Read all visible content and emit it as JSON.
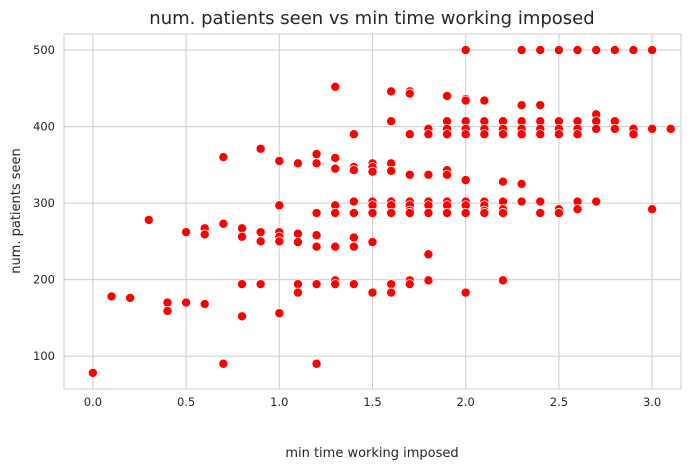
{
  "chart_data": {
    "type": "scatter",
    "title": "num. patients seen vs min time working imposed",
    "xlabel": "min time working imposed",
    "ylabel": "num. patients seen",
    "xlim": [
      -0.155,
      3.155
    ],
    "ylim": [
      57,
      521
    ],
    "xticks": [
      0.0,
      0.5,
      1.0,
      1.5,
      2.0,
      2.5,
      3.0
    ],
    "xtick_labels": [
      "0.0",
      "0.5",
      "1.0",
      "1.5",
      "2.0",
      "2.5",
      "3.0"
    ],
    "yticks": [
      100,
      200,
      300,
      400,
      500
    ],
    "ytick_labels": [
      "100",
      "200",
      "300",
      "400",
      "500"
    ],
    "grid": true,
    "colors": {
      "marker": "#ff0000",
      "grid": "#cccccc",
      "text": "#262626"
    },
    "points": [
      [
        0.0,
        78
      ],
      [
        0.1,
        178
      ],
      [
        0.2,
        176
      ],
      [
        0.3,
        278
      ],
      [
        0.4,
        170
      ],
      [
        0.4,
        159
      ],
      [
        0.5,
        262
      ],
      [
        0.5,
        170
      ],
      [
        0.6,
        267
      ],
      [
        0.6,
        259
      ],
      [
        0.6,
        168
      ],
      [
        0.7,
        360
      ],
      [
        0.7,
        273
      ],
      [
        0.7,
        90
      ],
      [
        0.8,
        267
      ],
      [
        0.8,
        256
      ],
      [
        0.8,
        194
      ],
      [
        0.8,
        152
      ],
      [
        0.9,
        371
      ],
      [
        0.9,
        262
      ],
      [
        0.9,
        250
      ],
      [
        0.9,
        194
      ],
      [
        1.0,
        355
      ],
      [
        1.0,
        297
      ],
      [
        1.0,
        262
      ],
      [
        1.0,
        256
      ],
      [
        1.0,
        250
      ],
      [
        1.0,
        156
      ],
      [
        1.1,
        352
      ],
      [
        1.1,
        260
      ],
      [
        1.1,
        249
      ],
      [
        1.1,
        194
      ],
      [
        1.1,
        183
      ],
      [
        1.2,
        364
      ],
      [
        1.2,
        352
      ],
      [
        1.2,
        287
      ],
      [
        1.2,
        258
      ],
      [
        1.2,
        243
      ],
      [
        1.2,
        194
      ],
      [
        1.2,
        90
      ],
      [
        1.3,
        452
      ],
      [
        1.3,
        359
      ],
      [
        1.3,
        345
      ],
      [
        1.3,
        297
      ],
      [
        1.3,
        287
      ],
      [
        1.3,
        243
      ],
      [
        1.3,
        199
      ],
      [
        1.3,
        194
      ],
      [
        1.4,
        390
      ],
      [
        1.4,
        347
      ],
      [
        1.4,
        343
      ],
      [
        1.4,
        302
      ],
      [
        1.4,
        287
      ],
      [
        1.4,
        255
      ],
      [
        1.4,
        243
      ],
      [
        1.4,
        194
      ],
      [
        1.5,
        352
      ],
      [
        1.5,
        347
      ],
      [
        1.5,
        341
      ],
      [
        1.5,
        302
      ],
      [
        1.5,
        297
      ],
      [
        1.5,
        287
      ],
      [
        1.5,
        249
      ],
      [
        1.5,
        183
      ],
      [
        1.6,
        446
      ],
      [
        1.6,
        407
      ],
      [
        1.6,
        352
      ],
      [
        1.6,
        342
      ],
      [
        1.6,
        302
      ],
      [
        1.6,
        297
      ],
      [
        1.6,
        287
      ],
      [
        1.6,
        194
      ],
      [
        1.6,
        183
      ],
      [
        1.7,
        446
      ],
      [
        1.7,
        443
      ],
      [
        1.7,
        390
      ],
      [
        1.7,
        337
      ],
      [
        1.7,
        302
      ],
      [
        1.7,
        297
      ],
      [
        1.7,
        290
      ],
      [
        1.7,
        287
      ],
      [
        1.7,
        199
      ],
      [
        1.7,
        194
      ],
      [
        1.8,
        397
      ],
      [
        1.8,
        390
      ],
      [
        1.8,
        337
      ],
      [
        1.8,
        302
      ],
      [
        1.8,
        297
      ],
      [
        1.8,
        287
      ],
      [
        1.8,
        233
      ],
      [
        1.8,
        199
      ],
      [
        1.9,
        440
      ],
      [
        1.9,
        407
      ],
      [
        1.9,
        397
      ],
      [
        1.9,
        390
      ],
      [
        1.9,
        343
      ],
      [
        1.9,
        337
      ],
      [
        1.9,
        302
      ],
      [
        1.9,
        297
      ],
      [
        1.9,
        287
      ],
      [
        2.0,
        500
      ],
      [
        2.0,
        436
      ],
      [
        2.0,
        434
      ],
      [
        2.0,
        407
      ],
      [
        2.0,
        397
      ],
      [
        2.0,
        390
      ],
      [
        2.0,
        330
      ],
      [
        2.0,
        302
      ],
      [
        2.0,
        297
      ],
      [
        2.0,
        287
      ],
      [
        2.0,
        183
      ],
      [
        2.1,
        434
      ],
      [
        2.1,
        407
      ],
      [
        2.1,
        397
      ],
      [
        2.1,
        390
      ],
      [
        2.1,
        302
      ],
      [
        2.1,
        297
      ],
      [
        2.1,
        290
      ],
      [
        2.1,
        287
      ],
      [
        2.2,
        407
      ],
      [
        2.2,
        397
      ],
      [
        2.2,
        390
      ],
      [
        2.2,
        328
      ],
      [
        2.2,
        302
      ],
      [
        2.2,
        292
      ],
      [
        2.2,
        287
      ],
      [
        2.2,
        199
      ],
      [
        2.3,
        500
      ],
      [
        2.3,
        428
      ],
      [
        2.3,
        407
      ],
      [
        2.3,
        397
      ],
      [
        2.3,
        390
      ],
      [
        2.3,
        325
      ],
      [
        2.3,
        302
      ],
      [
        2.4,
        500
      ],
      [
        2.4,
        428
      ],
      [
        2.4,
        407
      ],
      [
        2.4,
        397
      ],
      [
        2.4,
        390
      ],
      [
        2.4,
        302
      ],
      [
        2.4,
        287
      ],
      [
        2.5,
        500
      ],
      [
        2.5,
        407
      ],
      [
        2.5,
        397
      ],
      [
        2.5,
        390
      ],
      [
        2.5,
        292
      ],
      [
        2.5,
        287
      ],
      [
        2.6,
        500
      ],
      [
        2.6,
        407
      ],
      [
        2.6,
        397
      ],
      [
        2.6,
        390
      ],
      [
        2.6,
        302
      ],
      [
        2.6,
        292
      ],
      [
        2.7,
        500
      ],
      [
        2.7,
        416
      ],
      [
        2.7,
        407
      ],
      [
        2.7,
        397
      ],
      [
        2.7,
        302
      ],
      [
        2.8,
        500
      ],
      [
        2.8,
        407
      ],
      [
        2.8,
        397
      ],
      [
        2.9,
        500
      ],
      [
        2.9,
        397
      ],
      [
        2.9,
        390
      ],
      [
        3.0,
        500
      ],
      [
        3.0,
        397
      ],
      [
        3.0,
        292
      ],
      [
        3.1,
        397
      ]
    ]
  }
}
